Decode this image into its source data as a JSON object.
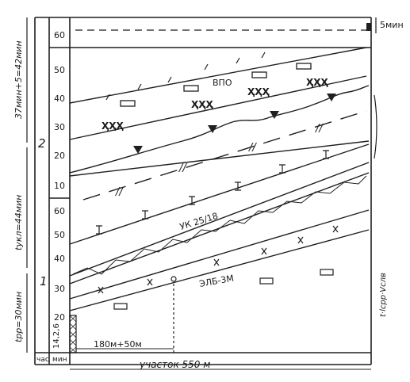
{
  "left_labels": {
    "upper": "37мин+5=42мин",
    "middle": "tукл=44мин",
    "lower": "tрр=30мин"
  },
  "right_top_label": "5мин",
  "right_side_label": "t·lсрр·Vслв",
  "axis_ticks_upper": [
    "60",
    "50",
    "40",
    "30",
    "20",
    "10"
  ],
  "axis_ticks_lower": [
    "60",
    "50",
    "40",
    "30",
    "20",
    "14,2,6"
  ],
  "q_label": "2",
  "hour_markers": [
    "1"
  ],
  "mark_vpo": "ВПО",
  "mark_uk": "УК 25/18",
  "mark_elb": "ЭЛБ-3М",
  "dimension_note": "180м+50м",
  "bottom_units": {
    "hour": "час",
    "minute": "мин"
  },
  "section_label": "участок 550 м",
  "colors": {
    "ink": "#1f1f1f",
    "paper": "#ffffff"
  }
}
